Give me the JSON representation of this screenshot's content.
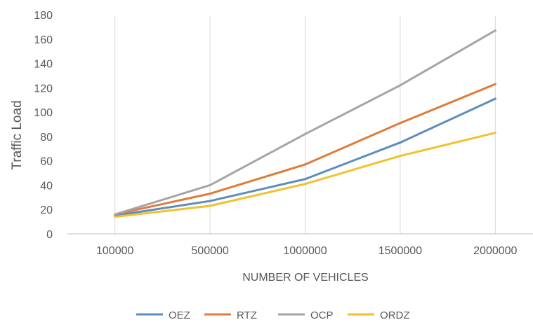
{
  "chart_data": {
    "type": "line",
    "xlabel": "NUMBER OF VEHICLES",
    "ylabel": "Traffic Load",
    "categories": [
      "100000",
      "500000",
      "1000000",
      "1500000",
      "2000000"
    ],
    "ylim": [
      0,
      180
    ],
    "yticks": [
      0,
      20,
      40,
      60,
      80,
      100,
      120,
      140,
      160,
      180
    ],
    "grid": "vertical",
    "legend_position": "bottom",
    "series": [
      {
        "name": "OEZ",
        "color": "#5B8DBE",
        "values": [
          15,
          27,
          45,
          75,
          111
        ]
      },
      {
        "name": "RTZ",
        "color": "#E07B39",
        "values": [
          16,
          33,
          57,
          91,
          123
        ]
      },
      {
        "name": "OCP",
        "color": "#A5A5A5",
        "values": [
          16,
          40,
          82,
          122,
          167
        ]
      },
      {
        "name": "ORDZ",
        "color": "#F2C12E",
        "values": [
          14,
          23,
          41,
          64,
          83
        ]
      }
    ]
  }
}
